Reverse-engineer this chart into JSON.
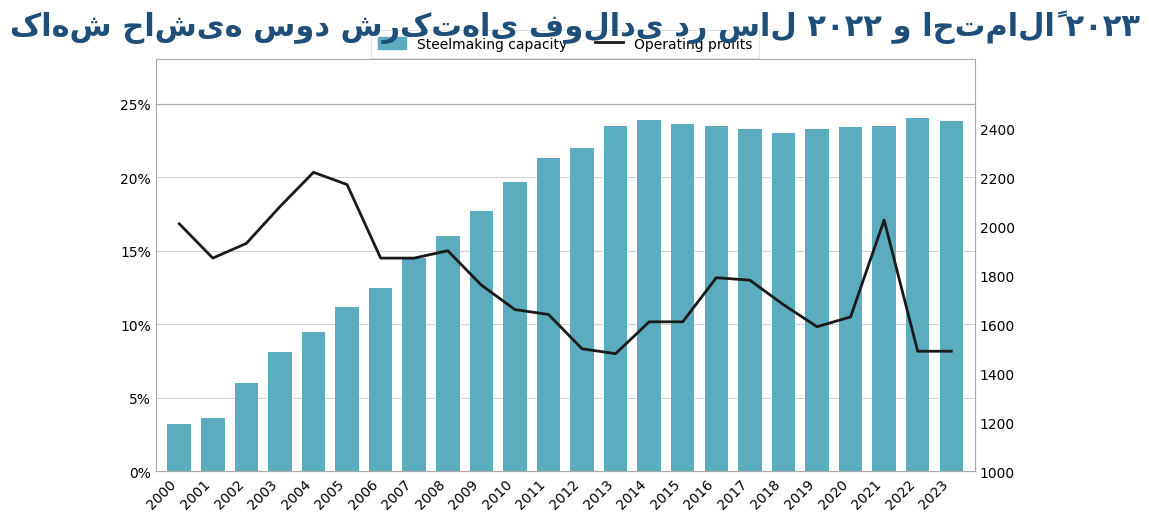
{
  "title_persian": "کاهش حاشیه سود شرکت‌های فولادی در سال ۲۰۲۲ و احتمالاً ۲۰۲۳",
  "years": [
    2000,
    2001,
    2002,
    2003,
    2004,
    2005,
    2006,
    2007,
    2008,
    2009,
    2010,
    2011,
    2012,
    2013,
    2014,
    2015,
    2016,
    2017,
    2018,
    2019,
    2020,
    2021,
    2022,
    2023
  ],
  "bar_values": [
    3.2,
    3.6,
    6.0,
    8.1,
    9.5,
    11.2,
    12.5,
    14.5,
    16.0,
    17.7,
    19.7,
    21.3,
    22.0,
    23.5,
    23.9,
    23.6,
    23.5,
    23.3,
    23.0,
    23.3,
    23.4,
    23.5,
    24.0,
    23.8
  ],
  "line_values": [
    2010,
    1870,
    1930,
    2080,
    2220,
    2170,
    1870,
    1870,
    1900,
    1760,
    1660,
    1640,
    1500,
    1480,
    1610,
    1610,
    1790,
    1780,
    1680,
    1590,
    1630,
    2025,
    1490,
    1490
  ],
  "bar_color": "#5aacbe",
  "line_color": "#1a1a1a",
  "background_color": "#ffffff",
  "plot_bg_color": "#ffffff",
  "legend_bar_label": "Steelmaking capacity",
  "legend_line_label": "Operating profits",
  "ylim_left": [
    0,
    25
  ],
  "ylim_right": [
    1000,
    2500
  ],
  "yticks_left": [
    0,
    5,
    10,
    15,
    20,
    25
  ],
  "ytick_labels_left": [
    "0%",
    "5%",
    "10%",
    "15%",
    "20%",
    "25%"
  ],
  "yticks_right": [
    1000,
    1200,
    1400,
    1600,
    1800,
    2000,
    2200,
    2400
  ],
  "title_color": "#1f4e79",
  "title_fontsize": 22,
  "axis_fontsize": 10,
  "legend_fontsize": 10,
  "bar_edge_color": "none",
  "bar_width": 0.7,
  "line_width": 2.0,
  "grid_color": "#d0d0d0",
  "box_color": "#aaaaaa"
}
